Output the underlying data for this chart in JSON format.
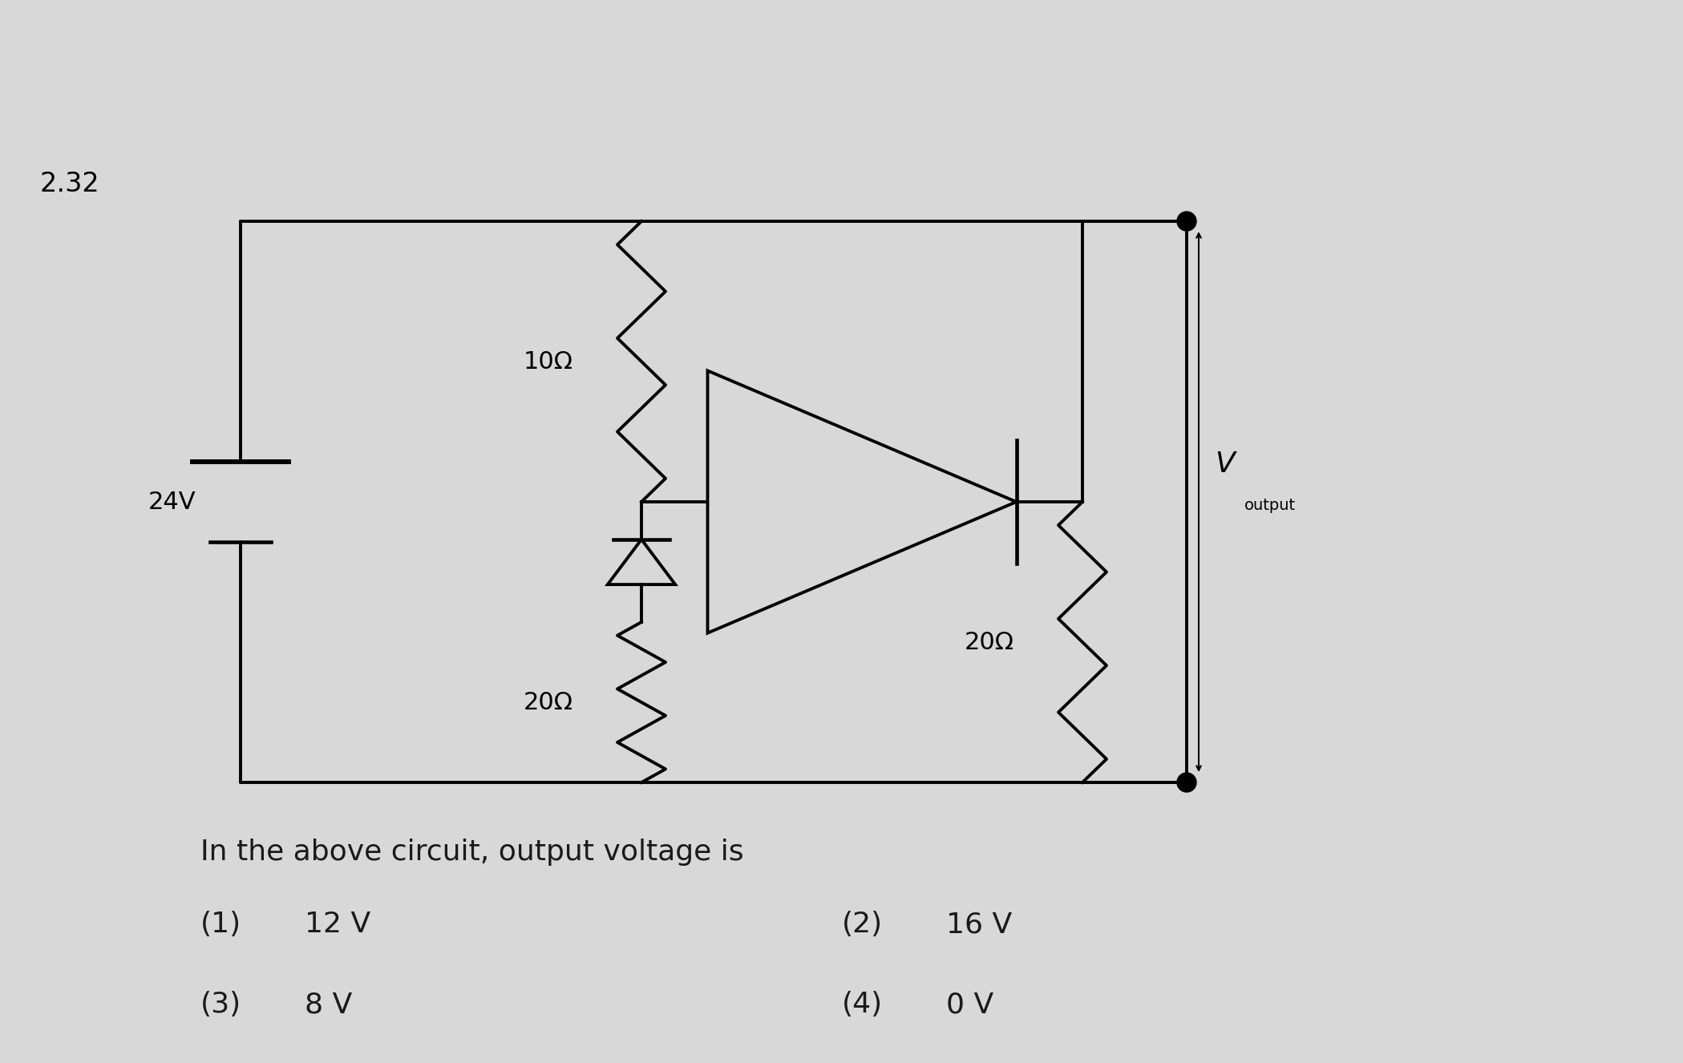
{
  "background_color": "#d8d8d8",
  "title_number": "2.32",
  "question_text": "In the above circuit, output voltage is",
  "options": [
    {
      "num": "(1)",
      "val": "12 V",
      "col": 0
    },
    {
      "num": "(2)",
      "val": "16 V",
      "col": 1
    },
    {
      "num": "(3)",
      "val": "8 V",
      "col": 0
    },
    {
      "num": "(4)",
      "val": "0 V",
      "col": 1
    }
  ],
  "circuit": {
    "source_label": "24V",
    "r1_label": "10Ω",
    "r2_label": "20Ω",
    "r3_label": "20Ω",
    "vout_label": "V",
    "vout_sub": "output"
  }
}
